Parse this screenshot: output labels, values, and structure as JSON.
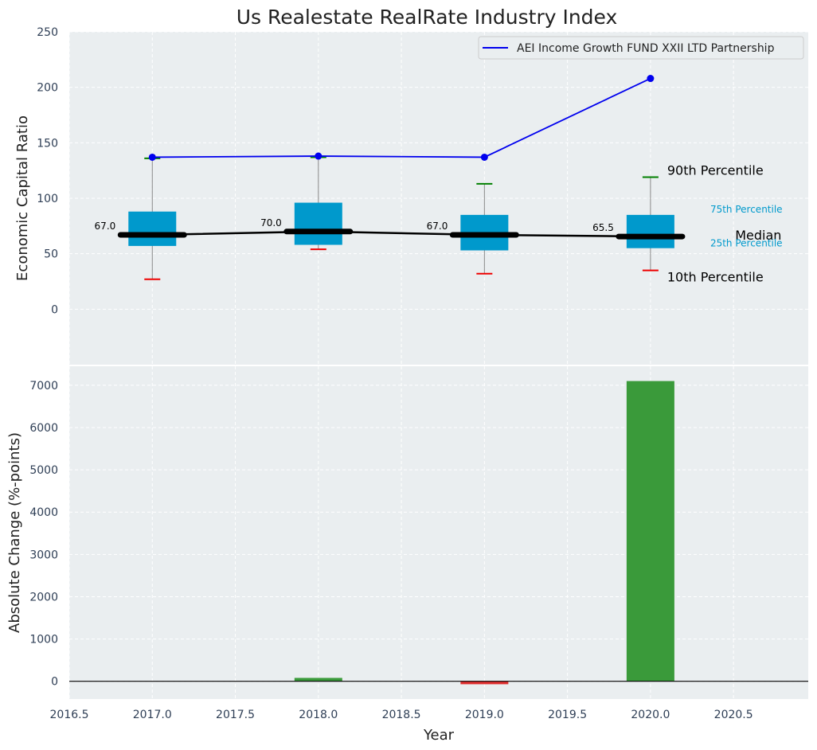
{
  "chart_data": [
    {
      "type": "box",
      "title": "Us Realestate RealRate Industry Index",
      "ylabel": "Economic Capital Ratio",
      "ylim": [
        -50,
        250
      ],
      "yticks": [
        0,
        50,
        100,
        150,
        200,
        250
      ],
      "grid": true,
      "legend_position": "top-right",
      "x": [
        2017.0,
        2018.0,
        2019.0,
        2020.0
      ],
      "boxes": [
        {
          "x": 2017.0,
          "p10": 27,
          "p25": 57,
          "median": 67.0,
          "p75": 88,
          "p90": 136,
          "median_label": "67.0"
        },
        {
          "x": 2018.0,
          "p10": 54,
          "p25": 58,
          "median": 70.0,
          "p75": 96,
          "p90": 137,
          "median_label": "70.0"
        },
        {
          "x": 2019.0,
          "p10": 32,
          "p25": 53,
          "median": 67.0,
          "p75": 85,
          "p90": 113,
          "median_label": "67.0"
        },
        {
          "x": 2020.0,
          "p10": 35,
          "p25": 55,
          "median": 65.5,
          "p75": 85,
          "p90": 119,
          "median_label": "65.5"
        }
      ],
      "series": [
        {
          "name": "AEI Income Growth FUND XXII LTD Partnership",
          "color": "#0000ee",
          "values": [
            137,
            138,
            137,
            208
          ]
        }
      ],
      "annotations": {
        "p90": "90th Percentile",
        "p75": "75th Percentile",
        "median": "Median",
        "p25": "25th Percentile",
        "p10": "10th Percentile"
      },
      "colors": {
        "box": "#0099cc",
        "median_line": "#000000",
        "p90_whisker": "#008000",
        "p10_whisker": "#ee0000"
      }
    },
    {
      "type": "bar",
      "xlabel": "Year",
      "ylabel": "Absolute Change (%-points)",
      "xlim": [
        2016.5,
        2020.95
      ],
      "xticks": [
        2016.5,
        2017.0,
        2017.5,
        2018.0,
        2018.5,
        2019.0,
        2019.5,
        2020.0,
        2020.5
      ],
      "ylim": [
        -420,
        7450
      ],
      "yticks": [
        0,
        1000,
        2000,
        3000,
        4000,
        5000,
        6000,
        7000
      ],
      "grid": true,
      "x": [
        2017.0,
        2018.0,
        2019.0,
        2020.0
      ],
      "values": [
        0,
        80,
        -70,
        7100
      ],
      "colors": {
        "positive": "#3a9a3a",
        "negative": "#e03030"
      }
    }
  ]
}
